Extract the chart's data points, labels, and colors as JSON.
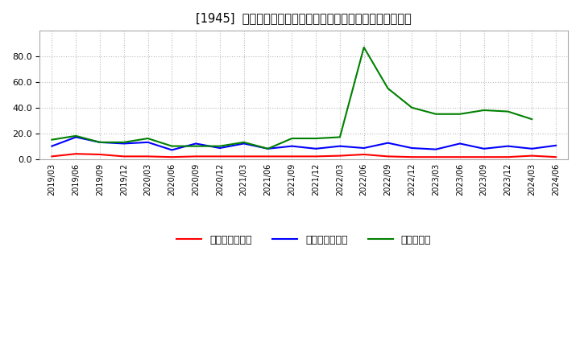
{
  "title": "[1945]  売上債権回転率、買入債務回転率、在庫回転率の推移",
  "dates": [
    "2019/03",
    "2019/06",
    "2019/09",
    "2019/12",
    "2020/03",
    "2020/06",
    "2020/09",
    "2020/12",
    "2021/03",
    "2021/06",
    "2021/09",
    "2021/12",
    "2022/03",
    "2022/06",
    "2022/09",
    "2022/12",
    "2023/03",
    "2023/06",
    "2023/09",
    "2023/12",
    "2024/03",
    "2024/06"
  ],
  "receivables_turnover": [
    2.0,
    4.0,
    3.5,
    2.0,
    2.0,
    1.5,
    2.0,
    2.0,
    2.0,
    2.0,
    2.0,
    2.0,
    2.5,
    3.5,
    2.0,
    1.5,
    1.5,
    1.5,
    1.5,
    1.5,
    2.5,
    1.5
  ],
  "payables_turnover": [
    10.0,
    17.0,
    13.0,
    12.0,
    13.0,
    7.0,
    12.0,
    8.5,
    12.0,
    8.0,
    10.0,
    8.0,
    10.0,
    8.5,
    12.5,
    8.5,
    7.5,
    12.0,
    8.0,
    10.0,
    8.0,
    10.5
  ],
  "inventory_turnover": [
    15.0,
    18.0,
    13.0,
    13.0,
    16.0,
    10.0,
    10.0,
    10.0,
    13.0,
    8.0,
    16.0,
    16.0,
    17.0,
    87.0,
    55.0,
    40.0,
    35.0,
    35.0,
    38.0,
    37.0,
    31.0,
    null
  ],
  "line_colors": {
    "receivables": "#ff0000",
    "payables": "#0000ff",
    "inventory": "#008000"
  },
  "ylim": [
    0.0,
    100.0
  ],
  "yticks": [
    0.0,
    20.0,
    40.0,
    60.0,
    80.0
  ],
  "legend_labels": [
    "売上債権回転率",
    "買入債務回転率",
    "在庫回転率"
  ],
  "background_color": "#ffffff",
  "grid_color": "#bbbbbb",
  "title_prefix": "[1945]",
  "title_main": "売上債権回転率、買入債務回転率、在庫回転率の推移"
}
